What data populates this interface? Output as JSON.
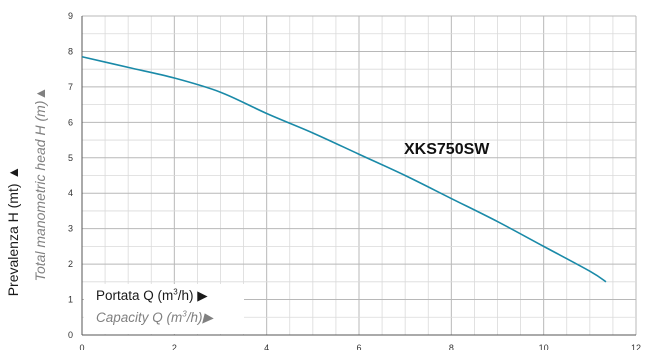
{
  "chart_data": {
    "type": "line",
    "xlabel_main": "Portata Q (m",
    "xlabel_main_sup": "3",
    "xlabel_main_end": "/h) ▶",
    "xlabel_sub": "Capacity Q (m",
    "xlabel_sub_sup": "3",
    "xlabel_sub_end": "/h)▶",
    "ylabel_main": "Prevalenza H (mt) ▲",
    "ylabel_sub": "Total manometric head H (m)▲",
    "xlim": [
      0,
      12
    ],
    "ylim": [
      0,
      9
    ],
    "x_ticks": [
      "0",
      "2",
      "4",
      "6",
      "8",
      "10",
      "12"
    ],
    "y_ticks": [
      "0",
      "1",
      "2",
      "3",
      "4",
      "5",
      "6",
      "7",
      "8",
      "9"
    ],
    "grid": true,
    "series": [
      {
        "name": "XKS750SW",
        "color": "#1a8aa8",
        "points": [
          [
            0,
            7.85
          ],
          [
            1,
            7.55
          ],
          [
            2,
            7.25
          ],
          [
            3,
            6.85
          ],
          [
            4,
            6.25
          ],
          [
            5,
            5.7
          ],
          [
            6,
            5.1
          ],
          [
            7,
            4.5
          ],
          [
            8,
            3.85
          ],
          [
            9,
            3.2
          ],
          [
            10,
            2.5
          ],
          [
            11,
            1.8
          ],
          [
            11.35,
            1.5
          ]
        ]
      }
    ]
  }
}
